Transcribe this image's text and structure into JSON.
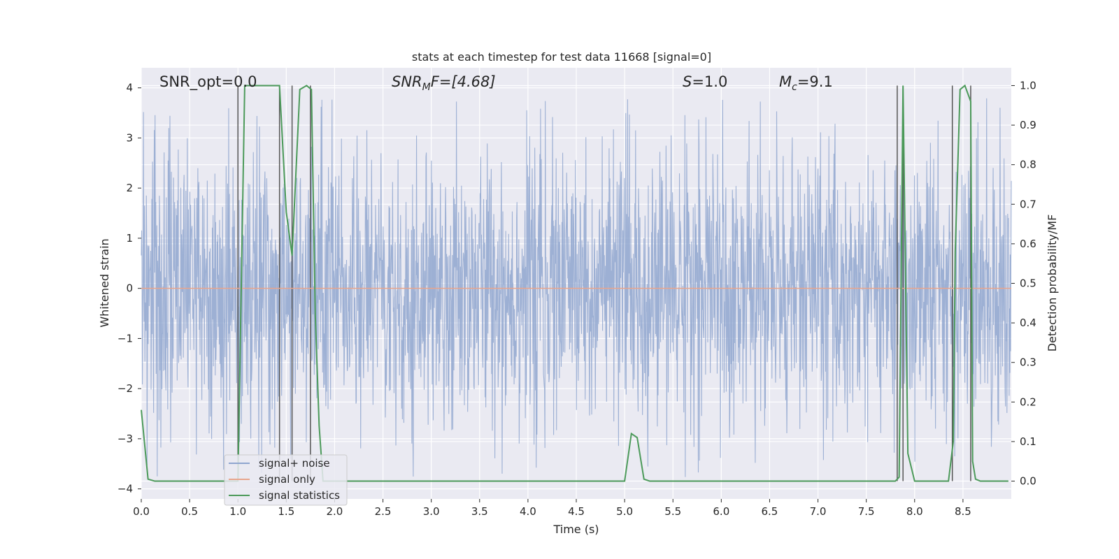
{
  "chart_data": {
    "type": "line",
    "title": "stats at each timestep for test data 11668 [signal=0]",
    "xlabel": "Time (s)",
    "ylabel": "Whitened strain",
    "ylabel_right": "Detection probability/MF",
    "xlim": [
      0.0,
      9.0
    ],
    "ylim": [
      -4.2,
      4.4
    ],
    "ylim_right": [
      -0.045,
      1.045
    ],
    "xticks": [
      "0.0",
      "0.5",
      "1.0",
      "1.5",
      "2.0",
      "2.5",
      "3.0",
      "3.5",
      "4.0",
      "4.5",
      "5.0",
      "5.5",
      "6.0",
      "6.5",
      "7.0",
      "7.5",
      "8.0",
      "8.5"
    ],
    "yticks": [
      "4",
      "3",
      "2",
      "1",
      "0",
      "−1",
      "−2",
      "−3",
      "−4"
    ],
    "yticks_right": [
      "1.0",
      "0.9",
      "0.8",
      "0.7",
      "0.6",
      "0.5",
      "0.4",
      "0.3",
      "0.2",
      "0.1",
      "0.0"
    ],
    "grid": true,
    "legend_position": "lower-left",
    "annotations": {
      "snr_opt": "SNR_opt=0.0",
      "snr_mf": "SNR",
      "snr_mf_sub": "M",
      "snr_mf_tail": "F=[4.68]",
      "s_label": "S",
      "s_value": "=1.0",
      "mc_label": "M",
      "mc_sub": "c",
      "mc_value": "=9.1"
    },
    "series": [
      {
        "name": "signal+ noise",
        "color": "#8fa6cf",
        "description_kind": "noise",
        "amplitude_typical": 1.5,
        "amplitude_max": 3.8
      },
      {
        "name": "signal only",
        "color": "#e8a58c",
        "x": [
          0.0,
          9.0
        ],
        "y": [
          0.0,
          0.0
        ]
      },
      {
        "name": "signal statistics",
        "color": "#4c9a5a",
        "axis": "right",
        "x": [
          0.0,
          0.07,
          0.14,
          1.0,
          1.07,
          1.43,
          1.5,
          1.56,
          1.64,
          1.71,
          1.76,
          1.8,
          1.84,
          1.88,
          1.94,
          5.0,
          5.07,
          5.13,
          5.2,
          5.26,
          7.8,
          7.84,
          7.88,
          7.93,
          8.0,
          8.35,
          8.4,
          8.42,
          8.47,
          8.52,
          8.58,
          8.6,
          8.63,
          8.68,
          8.97
        ],
        "y": [
          0.18,
          0.005,
          0.0,
          0.0,
          1.0,
          1.0,
          0.68,
          0.57,
          0.99,
          1.0,
          0.99,
          0.42,
          0.14,
          0.0,
          0.0,
          0.0,
          0.12,
          0.11,
          0.005,
          0.0,
          0.0,
          0.01,
          1.0,
          0.07,
          0.0,
          0.0,
          0.1,
          0.58,
          0.99,
          1.0,
          0.96,
          0.05,
          0.005,
          0.0,
          0.0
        ]
      }
    ],
    "vertical_lines": [
      1.0,
      1.43,
      1.56,
      1.75,
      7.82,
      7.88,
      8.39,
      8.58
    ],
    "vertical_line_color": "#555555"
  }
}
